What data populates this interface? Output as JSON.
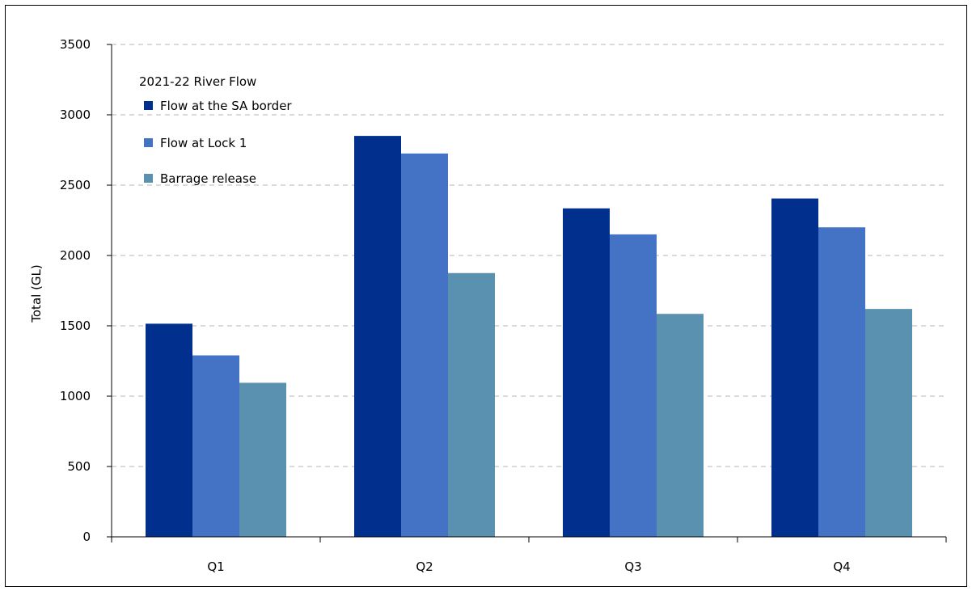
{
  "chart_data": {
    "type": "bar",
    "title": "",
    "xlabel": "",
    "ylabel": "Total (GL)",
    "categories": [
      "Q1",
      "Q2",
      "Q3",
      "Q4"
    ],
    "series": [
      {
        "name": "Flow at the SA border",
        "values": [
          1515,
          2850,
          2335,
          2405
        ],
        "color": "#002F8E"
      },
      {
        "name": "Flow at Lock 1",
        "values": [
          1290,
          2725,
          2150,
          2200
        ],
        "color": "#4472C4"
      },
      {
        "name": "Barrage release",
        "values": [
          1095,
          1875,
          1585,
          1620
        ],
        "color": "#5B91B0"
      }
    ],
    "ylim": [
      0,
      3500
    ],
    "yticks": [
      0,
      500,
      1000,
      1500,
      2000,
      2500,
      3000,
      3500
    ],
    "grid": "horizontal dashed",
    "legend": {
      "title": "2021-22 River Flow",
      "position": "top-left inside"
    }
  }
}
